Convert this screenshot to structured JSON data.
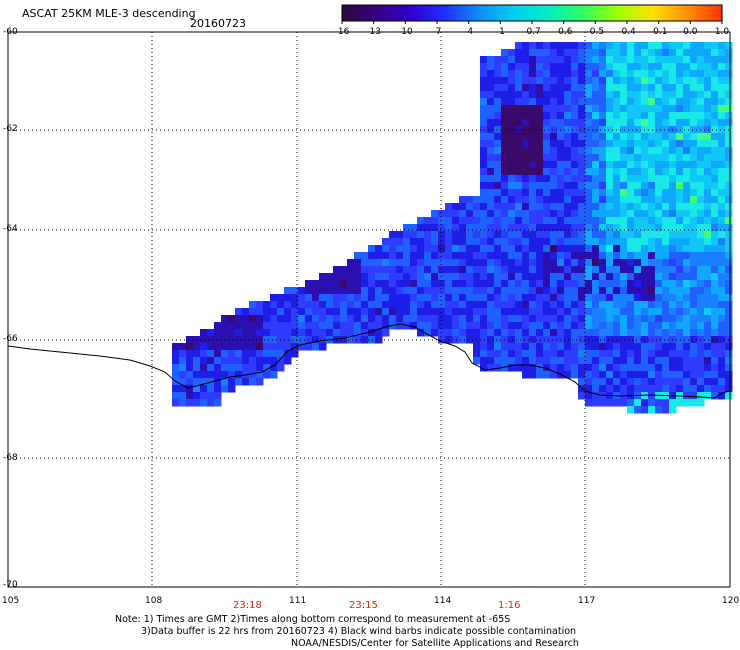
{
  "header": {
    "title": "ASCAT 25KM MLE-3 descending",
    "date": "20160723"
  },
  "colorbar": {
    "ticks": [
      "-16",
      "-13",
      "-10",
      "-7",
      "-4",
      "-1",
      "-0.7",
      "-0.6",
      "-0.5",
      "-0.4",
      "-0.1",
      "0.0",
      "1.0"
    ],
    "colors": [
      "#2a0a3a",
      "#3a0080",
      "#3000d0",
      "#2030ff",
      "#1090ff",
      "#00d0f0",
      "#00f0c0",
      "#30ff60",
      "#a0ff00",
      "#ffe000",
      "#ff9000",
      "#ff3000"
    ]
  },
  "axes": {
    "latitudes": [
      "-60",
      "-62",
      "-64",
      "-66",
      "-68",
      "-70"
    ],
    "longitudes": [
      "105",
      "108",
      "111",
      "114",
      "117",
      "120"
    ]
  },
  "times": [
    "23:18",
    "23:15",
    "1:16"
  ],
  "notes": {
    "line1": "Note: 1) Times are GMT 2)Times along bottom correspond to measurement at -65S",
    "line2": "3)Data buffer is 22 hrs from 20160723 4) Black wind barbs indicate possible contamination",
    "line3": "NOAA/NESDIS/Center for Satellite Applications and Research"
  }
}
